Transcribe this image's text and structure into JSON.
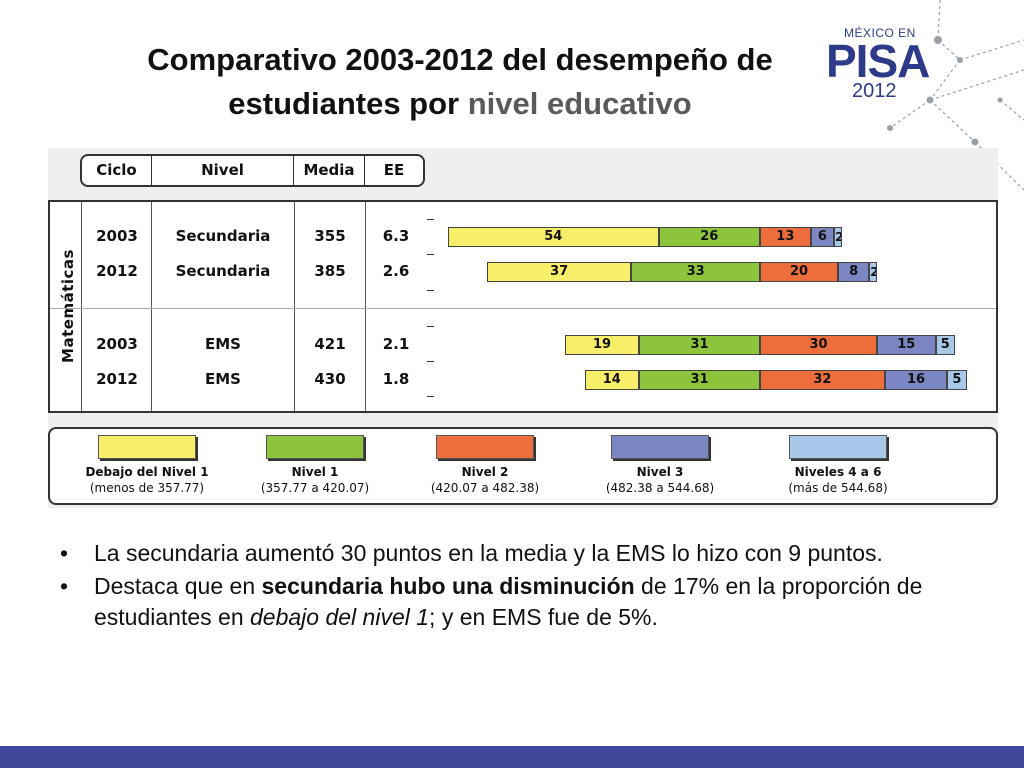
{
  "slide": {
    "title_line1": "Comparativo 2003-2012 del desempeño de",
    "title_line2_plain": "estudiantes por ",
    "title_line2_accent": "nivel educativo",
    "logo": {
      "top": "MÉXICO EN",
      "main": "PISA",
      "year": "2012"
    }
  },
  "table": {
    "headers": [
      "Ciclo",
      "Nivel",
      "Media",
      "EE"
    ],
    "subject": "Matemáticas",
    "rows": [
      {
        "ciclo": "2003",
        "nivel": "Secundaria",
        "media": "355",
        "ee": "6.3"
      },
      {
        "ciclo": "2012",
        "nivel": "Secundaria",
        "media": "385",
        "ee": "2.6"
      },
      {
        "ciclo": "2003",
        "nivel": "EMS",
        "media": "421",
        "ee": "2.1"
      },
      {
        "ciclo": "2012",
        "nivel": "EMS",
        "media": "430",
        "ee": "1.8"
      }
    ]
  },
  "chart_data": {
    "type": "bar",
    "stacked": true,
    "orientation": "horizontal",
    "categories": [
      "2003 Secundaria",
      "2012 Secundaria",
      "2003 EMS",
      "2012 EMS"
    ],
    "series": [
      {
        "name": "Debajo del Nivel 1",
        "values": [
          54,
          37,
          19,
          14
        ],
        "color": "#f7ef6a"
      },
      {
        "name": "Nivel 1",
        "values": [
          26,
          33,
          31,
          31
        ],
        "color": "#8cc43c"
      },
      {
        "name": "Nivel 2",
        "values": [
          13,
          20,
          30,
          32
        ],
        "color": "#ee6d3c"
      },
      {
        "name": "Nivel 3",
        "values": [
          6,
          8,
          15,
          16
        ],
        "color": "#7b86c2"
      },
      {
        "name": "Niveles 4 a 6",
        "values": [
          2,
          2,
          5,
          5
        ],
        "color": "#a8c8ea"
      }
    ],
    "legend_ranges": [
      "(menos de 357.77)",
      "(357.77 a 420.07)",
      "(420.07 a 482.38)",
      "(482.38 a 544.68)",
      "(más de 544.68)"
    ],
    "legend_position": "bottom"
  },
  "bullets": [
    {
      "parts": [
        {
          "text": "La secundaria aumentó 30 puntos  en la media y la EMS lo hizo con 9 puntos.",
          "style": "normal"
        }
      ]
    },
    {
      "parts": [
        {
          "text": "Destaca que en ",
          "style": "normal"
        },
        {
          "text": "secundaria hubo una disminución",
          "style": "bold"
        },
        {
          "text": " de 17% en la proporción de estudiantes en ",
          "style": "normal"
        },
        {
          "text": "debajo del nivel 1",
          "style": "italic"
        },
        {
          "text": "; y en EMS fue de 5%.",
          "style": "normal"
        }
      ]
    }
  ],
  "colors": {
    "footer": "#3f479a",
    "logo": "#2d3a8a"
  }
}
